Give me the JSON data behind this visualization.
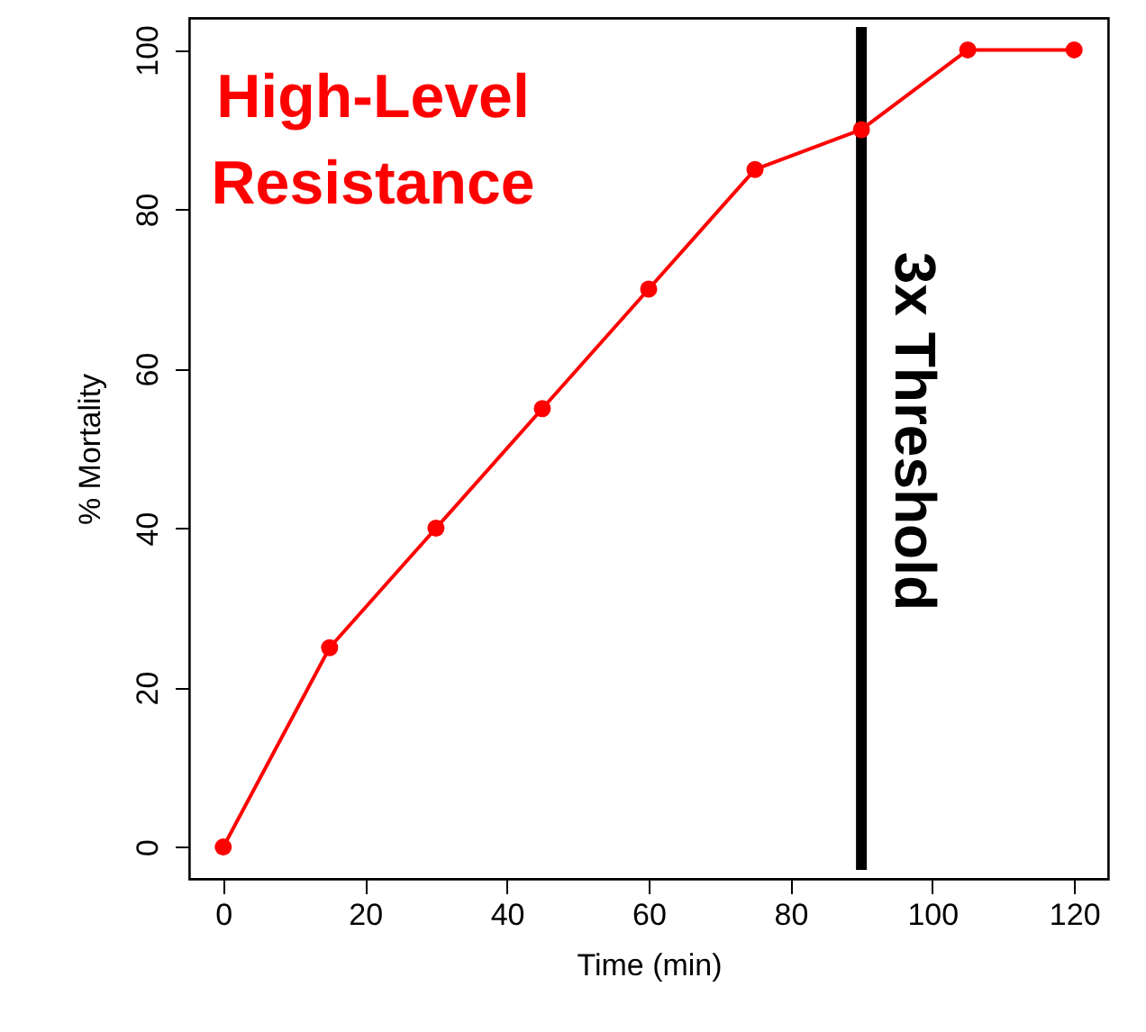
{
  "chart_data": {
    "type": "line",
    "x": [
      0,
      15,
      30,
      45,
      60,
      75,
      90,
      105,
      120
    ],
    "series": [
      {
        "color": "#ff0000",
        "values": [
          0,
          25,
          40,
          55,
          70,
          85,
          90,
          100,
          100
        ]
      }
    ],
    "xlabel": "Time (min)",
    "ylabel": "% Mortality",
    "xlim": [
      -4.8,
      124.8
    ],
    "ylim": [
      -4,
      104
    ],
    "xticks": [
      0,
      20,
      40,
      60,
      80,
      100,
      120
    ],
    "yticks": [
      0,
      20,
      40,
      60,
      80,
      100
    ],
    "ref_lines": [
      {
        "axis": "x",
        "value": 90,
        "label": "3x Threshold",
        "color": "#000000"
      }
    ],
    "annotations": [
      "High-Level\nResistance"
    ],
    "marker": "circle",
    "line_style": "solid",
    "grid": false
  }
}
